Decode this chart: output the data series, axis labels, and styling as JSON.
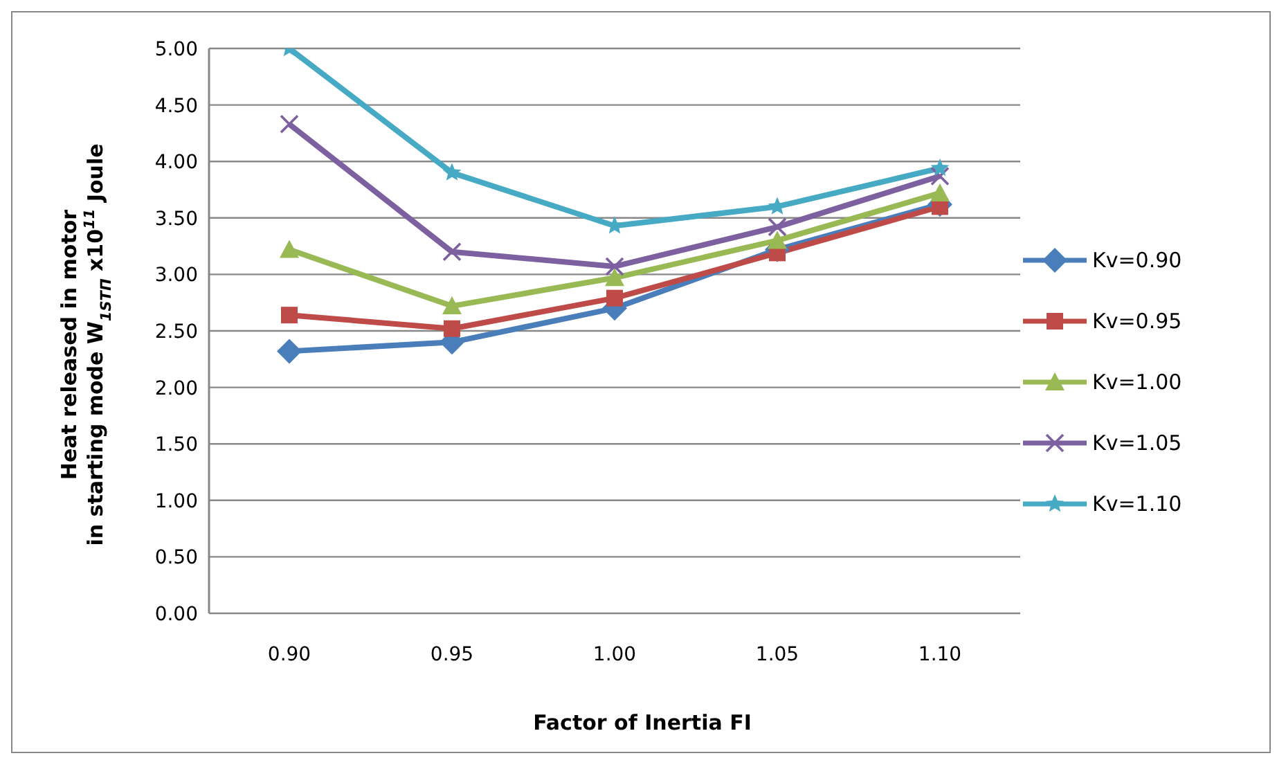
{
  "chart_data": {
    "type": "line",
    "xlabel": "Factor of Inertia FI",
    "ylabel": "Heat released in motor\nin starting  mode W$_{1STП}$ x10$^{11}$ Joule",
    "categories": [
      "0.90",
      "0.95",
      "1.00",
      "1.05",
      "1.10"
    ],
    "series": [
      {
        "name": "Kv=0.90",
        "color": "#4a7ebb",
        "marker": "diamond",
        "values": [
          2.32,
          2.4,
          2.7,
          3.22,
          3.62
        ]
      },
      {
        "name": "Kv=0.95",
        "color": "#be4b48",
        "marker": "square",
        "values": [
          2.64,
          2.52,
          2.79,
          3.19,
          3.6
        ]
      },
      {
        "name": "Kv=1.00",
        "color": "#98b954",
        "marker": "triangle",
        "values": [
          3.22,
          2.72,
          2.97,
          3.3,
          3.72
        ]
      },
      {
        "name": "Kv=1.05",
        "color": "#7d60a0",
        "marker": "cross",
        "values": [
          4.33,
          3.2,
          3.07,
          3.42,
          3.87
        ]
      },
      {
        "name": "Kv=1.10",
        "color": "#46aac5",
        "marker": "star",
        "values": [
          5.0,
          3.9,
          3.43,
          3.6,
          3.94
        ]
      }
    ],
    "ylim": [
      0,
      5
    ],
    "yticks": [
      {
        "value": 0,
        "label": "0.00"
      },
      {
        "value": 0.5,
        "label": "0.50"
      },
      {
        "value": 1,
        "label": "1.00"
      },
      {
        "value": 1.5,
        "label": "1.50"
      },
      {
        "value": 2,
        "label": "2.00"
      },
      {
        "value": 2.5,
        "label": "2.50"
      },
      {
        "value": 3,
        "label": "3.00"
      },
      {
        "value": 3.5,
        "label": "3.50"
      },
      {
        "value": 4,
        "label": "4.00"
      },
      {
        "value": 4.5,
        "label": "4.50"
      },
      {
        "value": 5,
        "label": "5.00"
      }
    ],
    "grid": "y",
    "legend": "right",
    "line_style": "solid"
  }
}
